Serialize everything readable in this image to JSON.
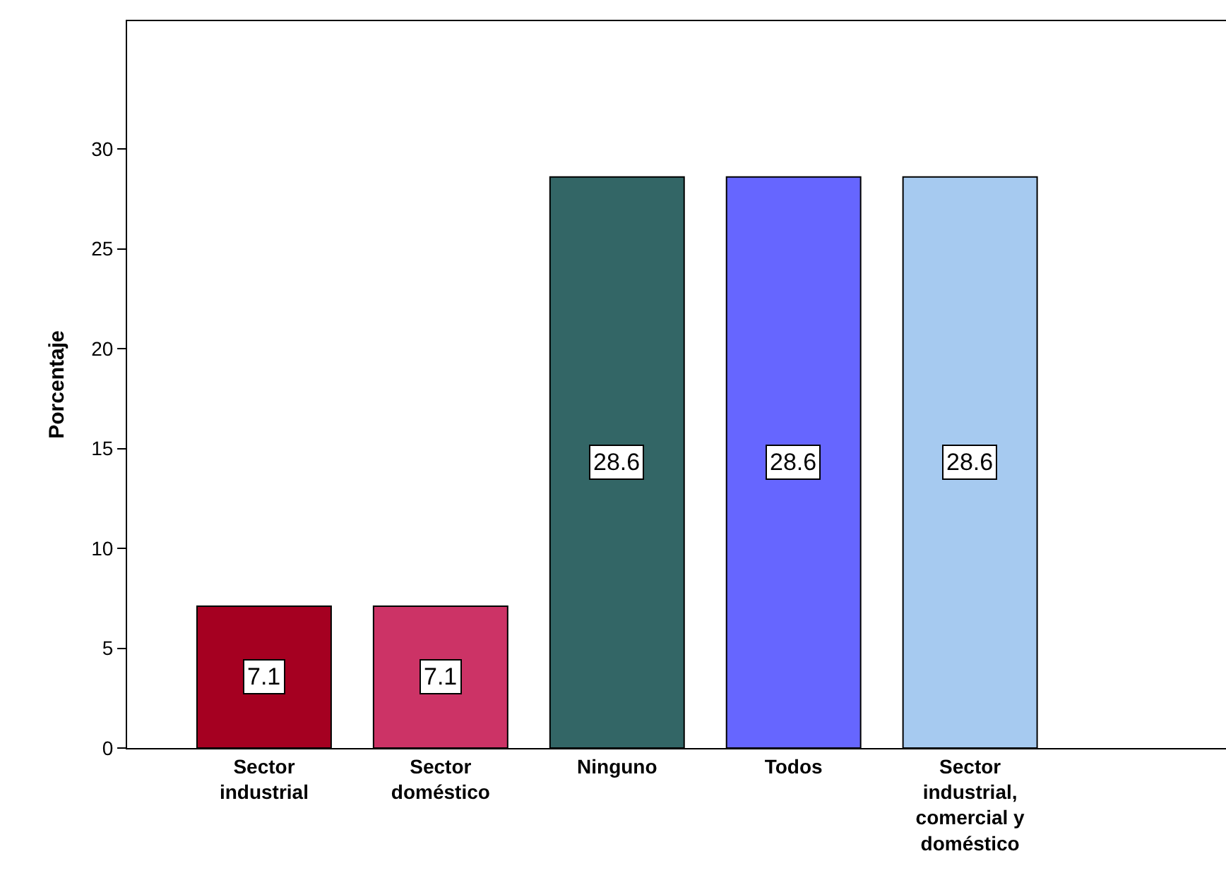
{
  "chart_data": {
    "type": "bar",
    "ylabel": "Porcentaje",
    "categories": [
      "Sector industrial",
      "Sector doméstico",
      "Ninguno",
      "Todos",
      "Sector industrial, comercial y doméstico"
    ],
    "values": [
      7.1,
      7.1,
      28.6,
      28.6,
      28.6
    ],
    "colors": [
      "#a50021",
      "#cc3366",
      "#336666",
      "#6666ff",
      "#a6caf0"
    ],
    "ylim": [
      0,
      36.4
    ],
    "yticks": [
      0,
      5,
      10,
      15,
      20,
      25,
      30
    ],
    "data_labels": true,
    "legend": false
  }
}
